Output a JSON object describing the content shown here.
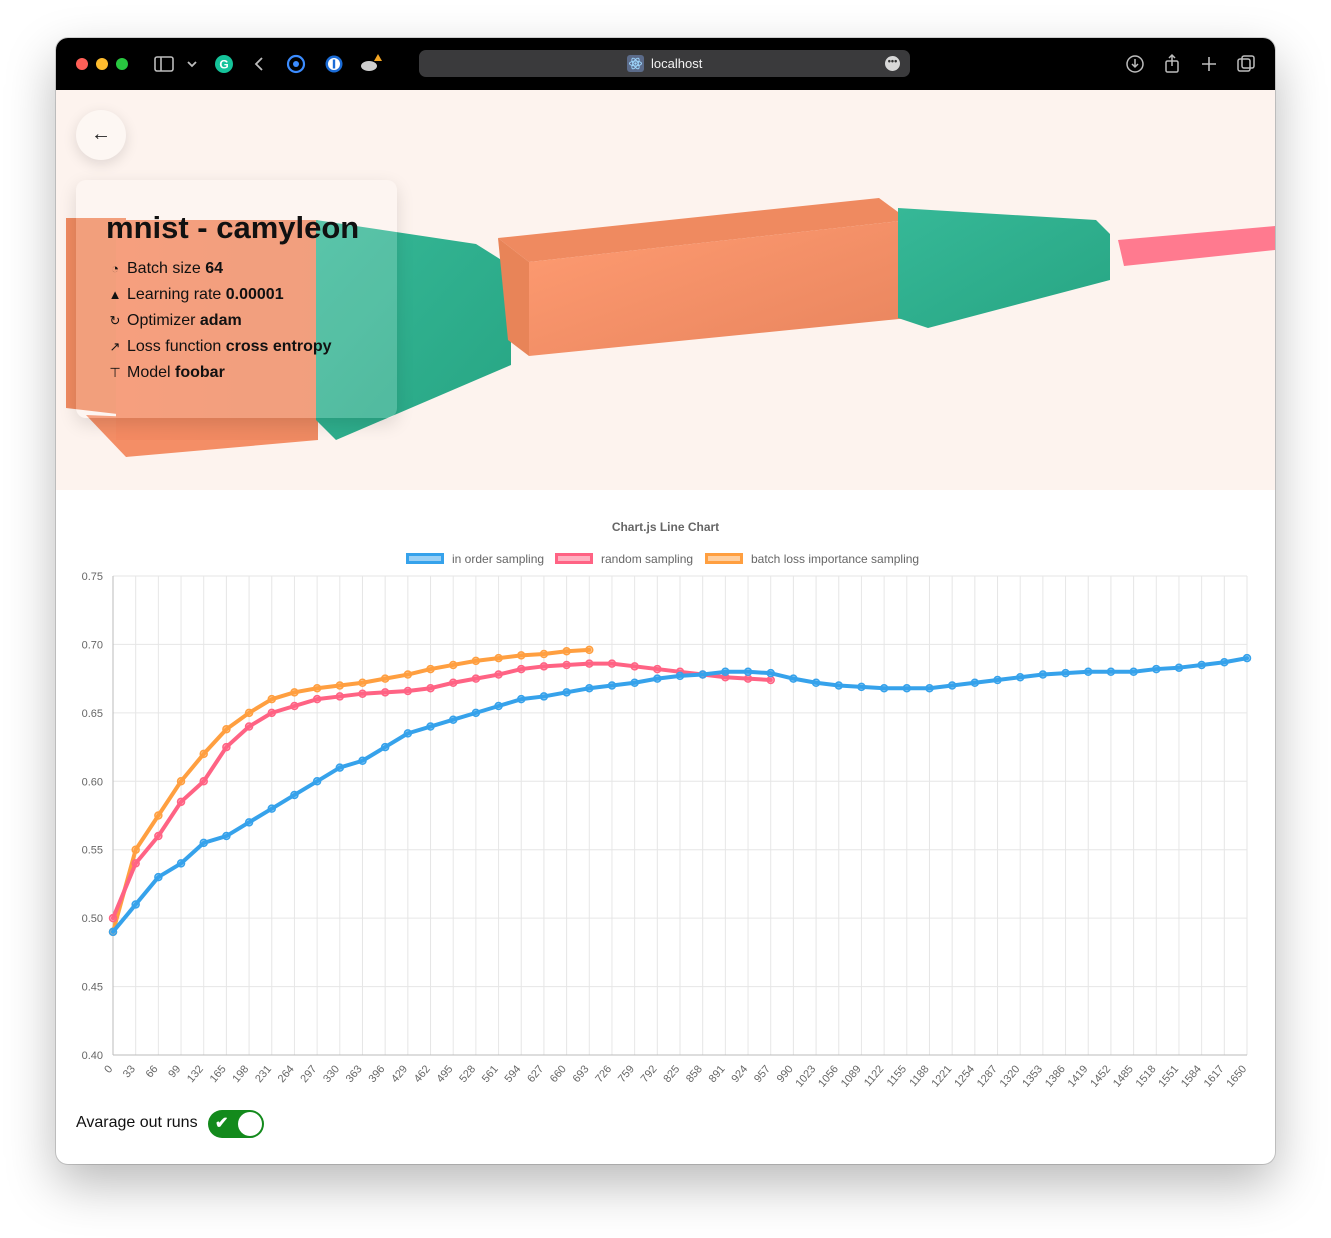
{
  "browser": {
    "url": "localhost",
    "colors": {
      "close": "#ff5f57",
      "minimize": "#febc2e",
      "maximize": "#28c840"
    }
  },
  "hero": {
    "title": "mnist - camyleon",
    "rows": [
      {
        "icon": "pie-chart-icon",
        "label": "Batch size",
        "value": "64"
      },
      {
        "icon": "triangle-up-icon",
        "label": "Learning rate",
        "value": "0.00001"
      },
      {
        "icon": "refresh-icon",
        "label": "Optimizer",
        "value": "adam"
      },
      {
        "icon": "trending-up-icon",
        "label": "Loss function",
        "value": "cross entropy"
      },
      {
        "icon": "sitemap-icon",
        "label": "Model",
        "value": "foobar"
      }
    ]
  },
  "chart_data": {
    "type": "line",
    "title": "Chart.js Line Chart",
    "xlabel": "",
    "ylabel": "",
    "ylim": [
      0.4,
      0.75
    ],
    "yticks": [
      "0.40",
      "0.45",
      "0.50",
      "0.55",
      "0.60",
      "0.65",
      "0.70",
      "0.75"
    ],
    "xlim": [
      0,
      1650
    ],
    "xticks": [
      0,
      33,
      66,
      99,
      132,
      165,
      198,
      231,
      264,
      297,
      330,
      363,
      396,
      429,
      462,
      495,
      528,
      561,
      594,
      627,
      660,
      693,
      726,
      759,
      792,
      825,
      858,
      891,
      924,
      957,
      990,
      1023,
      1056,
      1089,
      1122,
      1155,
      1188,
      1221,
      1254,
      1287,
      1320,
      1353,
      1386,
      1419,
      1452,
      1485,
      1518,
      1551,
      1584,
      1617,
      1650
    ],
    "legend_position": "top",
    "series": [
      {
        "name": "in order sampling",
        "color": "#36a2eb",
        "fill": "rgba(54,162,235,0.5)",
        "x": [
          0,
          33,
          66,
          99,
          132,
          165,
          198,
          231,
          264,
          297,
          330,
          363,
          396,
          429,
          462,
          495,
          528,
          561,
          594,
          627,
          660,
          693,
          726,
          759,
          792,
          825,
          858,
          891,
          924,
          957,
          990,
          1023,
          1056,
          1089,
          1122,
          1155,
          1188,
          1221,
          1254,
          1287,
          1320,
          1353,
          1386,
          1419,
          1452,
          1485,
          1518,
          1551,
          1584,
          1617,
          1650
        ],
        "values": [
          0.49,
          0.51,
          0.53,
          0.54,
          0.555,
          0.56,
          0.57,
          0.58,
          0.59,
          0.6,
          0.61,
          0.615,
          0.625,
          0.635,
          0.64,
          0.645,
          0.65,
          0.655,
          0.66,
          0.662,
          0.665,
          0.668,
          0.67,
          0.672,
          0.675,
          0.677,
          0.678,
          0.68,
          0.68,
          0.679,
          0.675,
          0.672,
          0.67,
          0.669,
          0.668,
          0.668,
          0.668,
          0.67,
          0.672,
          0.674,
          0.676,
          0.678,
          0.679,
          0.68,
          0.68,
          0.68,
          0.682,
          0.683,
          0.685,
          0.687,
          0.69
        ]
      },
      {
        "name": "random sampling",
        "color": "#ff6384",
        "fill": "rgba(255,99,132,0.5)",
        "x": [
          0,
          33,
          66,
          99,
          132,
          165,
          198,
          231,
          264,
          297,
          330,
          363,
          396,
          429,
          462,
          495,
          528,
          561,
          594,
          627,
          660,
          693,
          726,
          759,
          792,
          825,
          858,
          891,
          924,
          957
        ],
        "values": [
          0.5,
          0.54,
          0.56,
          0.585,
          0.6,
          0.625,
          0.64,
          0.65,
          0.655,
          0.66,
          0.662,
          0.664,
          0.665,
          0.666,
          0.668,
          0.672,
          0.675,
          0.678,
          0.682,
          0.684,
          0.685,
          0.686,
          0.686,
          0.684,
          0.682,
          0.68,
          0.678,
          0.676,
          0.675,
          0.674
        ]
      },
      {
        "name": "batch loss importance sampling",
        "color": "#ff9f40",
        "fill": "rgba(255,159,64,0.5)",
        "x": [
          0,
          33,
          66,
          99,
          132,
          165,
          198,
          231,
          264,
          297,
          330,
          363,
          396,
          429,
          462,
          495,
          528,
          561,
          594,
          627,
          660,
          693
        ],
        "values": [
          0.49,
          0.55,
          0.575,
          0.6,
          0.62,
          0.638,
          0.65,
          0.66,
          0.665,
          0.668,
          0.67,
          0.672,
          0.675,
          0.678,
          0.682,
          0.685,
          0.688,
          0.69,
          0.692,
          0.693,
          0.695,
          0.696
        ]
      }
    ]
  },
  "controls": {
    "average_label": "Avarage out runs",
    "average_on": true
  }
}
